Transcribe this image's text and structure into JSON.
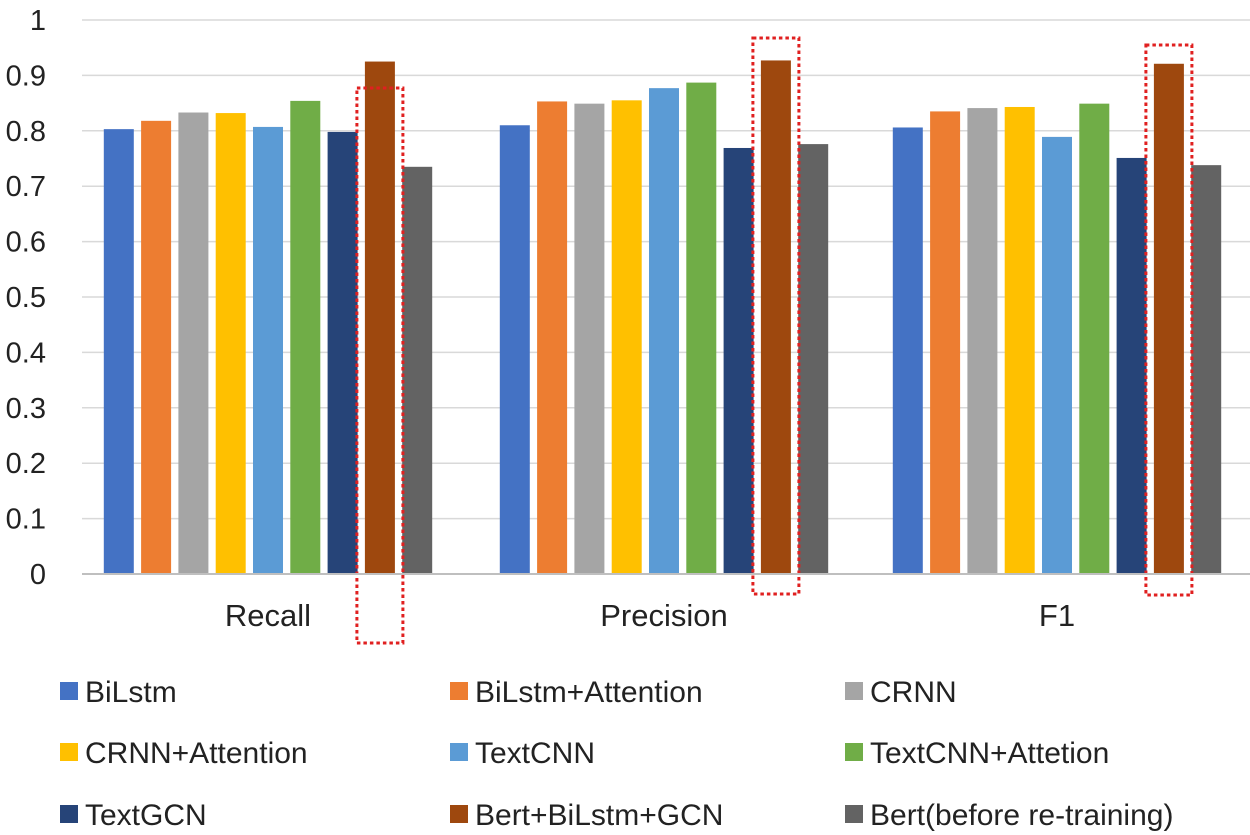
{
  "chart_data": {
    "type": "bar",
    "categories": [
      "Recall",
      "Precision",
      "F1"
    ],
    "ylim": [
      0,
      1
    ],
    "yticks": [
      "0",
      "0.1",
      "0.2",
      "0.3",
      "0.4",
      "0.5",
      "0.6",
      "0.7",
      "0.8",
      "0.9",
      "1"
    ],
    "grid": true,
    "legend_position": "bottom",
    "series": [
      {
        "name": "BiLstm",
        "color": "#4472C4",
        "values": [
          0.803,
          0.81,
          0.806
        ]
      },
      {
        "name": "BiLstm+Attention",
        "color": "#ED7D31",
        "values": [
          0.818,
          0.853,
          0.835
        ]
      },
      {
        "name": "CRNN",
        "color": "#A5A5A5",
        "values": [
          0.833,
          0.849,
          0.841
        ]
      },
      {
        "name": "CRNN+Attention",
        "color": "#FFC000",
        "values": [
          0.832,
          0.855,
          0.843
        ]
      },
      {
        "name": "TextCNN",
        "color": "#5B9BD5",
        "values": [
          0.807,
          0.877,
          0.789
        ]
      },
      {
        "name": "TextCNN+Attetion",
        "color": "#70AD47",
        "values": [
          0.854,
          0.887,
          0.849
        ]
      },
      {
        "name": "TextGCN",
        "color": "#264478",
        "values": [
          0.798,
          0.769,
          0.751
        ]
      },
      {
        "name": "Bert+BiLstm+GCN",
        "color": "#9E480E",
        "values": [
          0.925,
          0.927,
          0.921
        ]
      },
      {
        "name": "Bert(before re-training)",
        "color": "#636363",
        "values": [
          0.735,
          0.776,
          0.738
        ]
      }
    ],
    "highlight_series": "Bert+BiLstm+GCN",
    "highlight_color": "#E02020"
  }
}
